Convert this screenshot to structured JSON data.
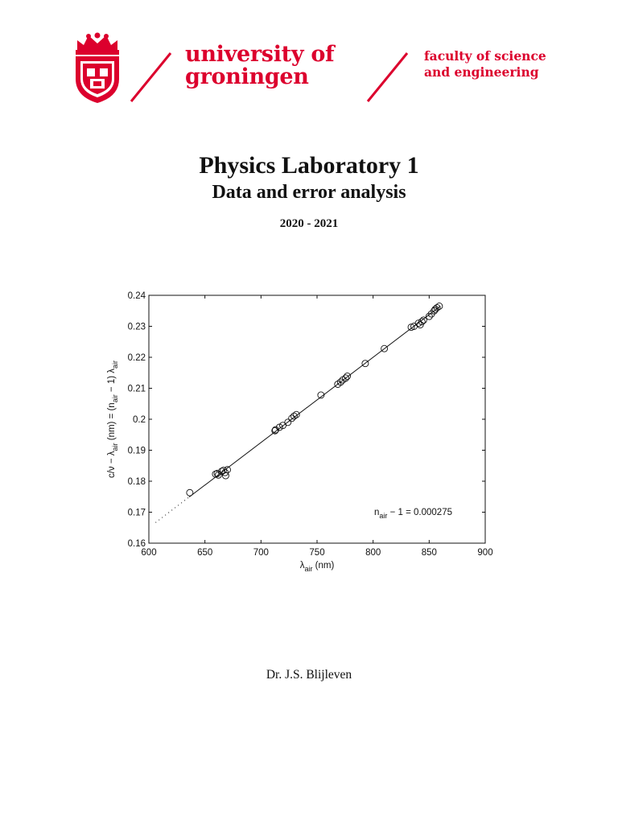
{
  "colors": {
    "brand": "#dc002d"
  },
  "header": {
    "university_line1": "university of",
    "university_line2": "groningen",
    "faculty_line1": "faculty of science",
    "faculty_line2": "and engineering",
    "crest_icon": "university-crest-icon"
  },
  "document": {
    "title": "Physics Laboratory 1",
    "subtitle": "Data and error analysis",
    "year": "2020 - 2021",
    "author": "Dr. J.S. Blijleven"
  },
  "chart_data": {
    "type": "scatter",
    "title": "",
    "xlabel_main": "λ",
    "xlabel_sub": "air",
    "xlabel_rest": " (nm)",
    "ylabel": "c/ν − λair (nm) = (nair − 1) λair",
    "xlim": [
      600,
      900
    ],
    "ylim": [
      0.16,
      0.24
    ],
    "xticks": [
      600,
      650,
      700,
      750,
      800,
      850,
      900
    ],
    "yticks": [
      0.16,
      0.17,
      0.18,
      0.19,
      0.2,
      0.21,
      0.22,
      0.23,
      0.24
    ],
    "ytick_labels": [
      "0.16",
      "0.17",
      "0.18",
      "0.19",
      "0.2",
      "0.21",
      "0.22",
      "0.23",
      "0.24"
    ],
    "grid": false,
    "annotation": {
      "main": "n",
      "sub": "air",
      "rest": " − 1 = 0.000275"
    },
    "fit": {
      "slope": 0.000275,
      "x_solid": [
        636,
        860
      ],
      "x_dotted": [
        606,
        636
      ]
    },
    "points": {
      "x": [
        636.5,
        659.5,
        661,
        662,
        665,
        666.5,
        668,
        668.5,
        670,
        712.5,
        713,
        716.5,
        719.5,
        724,
        727.5,
        729.5,
        731.5,
        753.5,
        768.5,
        771,
        773,
        775.5,
        777,
        793,
        810,
        834,
        836.5,
        840.5,
        842,
        843.5,
        845,
        850,
        852,
        854.5,
        855.5,
        857,
        859
      ],
      "y": [
        0.1763,
        0.1823,
        0.1825,
        0.182,
        0.1832,
        0.1835,
        0.1828,
        0.1818,
        0.1837,
        0.1963,
        0.1966,
        0.1974,
        0.198,
        0.199,
        0.2003,
        0.201,
        0.2015,
        0.2078,
        0.2113,
        0.212,
        0.2127,
        0.2133,
        0.2139,
        0.218,
        0.2228,
        0.2297,
        0.23,
        0.231,
        0.2305,
        0.2315,
        0.232,
        0.2332,
        0.234,
        0.235,
        0.2355,
        0.236,
        0.2365
      ]
    }
  }
}
